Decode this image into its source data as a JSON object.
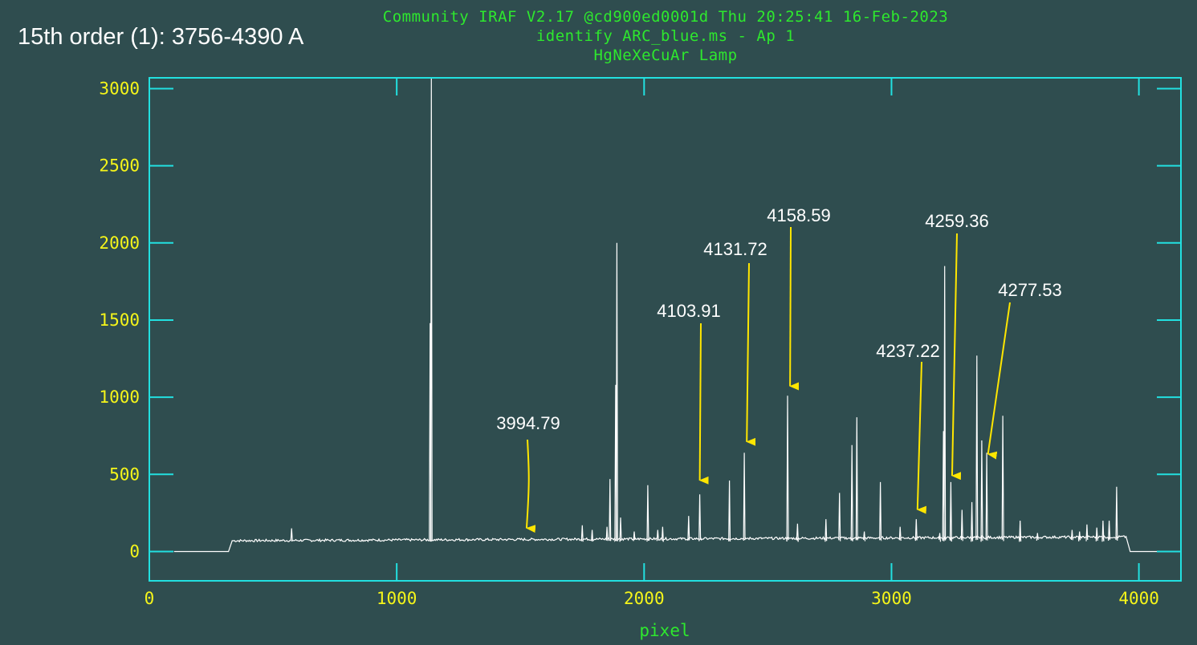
{
  "window": {
    "order_label": "15th order (1): 3756-4390 A",
    "header_line1": "Community IRAF V2.17 @cd900ed0001d Thu 20:25:41 16-Feb-2023",
    "header_line2": "identify ARC_blue.ms - Ap 1",
    "header_line3": "HgNeXeCuAr Lamp"
  },
  "colors": {
    "background": "#2f4d4f",
    "frame": "#22e0e0",
    "tick_labels": "#f5f51a",
    "xlabel": "#2ee82e",
    "header_text": "#2ee82e",
    "spectrum": "#ffffff",
    "annotation_arrow": "#ffe600",
    "annotation_text": "#ffffff"
  },
  "chart_data": {
    "type": "line",
    "title": "identify ARC_blue.ms - Ap 1",
    "xlabel": "pixel",
    "ylabel": "",
    "xlim": [
      0,
      4170
    ],
    "ylim": [
      -190,
      3070
    ],
    "x_ticks": [
      0,
      1000,
      2000,
      3000,
      4000
    ],
    "y_ticks": [
      0,
      500,
      1000,
      1500,
      2000,
      2500,
      3000
    ],
    "grid": false,
    "baseline_start": 330,
    "baseline_end": 3950,
    "baseline_level": 70,
    "peaks": [
      {
        "x": 575,
        "y": 150
      },
      {
        "x": 1135,
        "y": 1480
      },
      {
        "x": 1140,
        "y": 3070
      },
      {
        "x": 1750,
        "y": 170
      },
      {
        "x": 1790,
        "y": 140
      },
      {
        "x": 1850,
        "y": 160
      },
      {
        "x": 1862,
        "y": 470
      },
      {
        "x": 1885,
        "y": 1080
      },
      {
        "x": 1890,
        "y": 2000
      },
      {
        "x": 1905,
        "y": 220
      },
      {
        "x": 1960,
        "y": 130
      },
      {
        "x": 2015,
        "y": 430
      },
      {
        "x": 2055,
        "y": 140
      },
      {
        "x": 2075,
        "y": 160
      },
      {
        "x": 2180,
        "y": 230
      },
      {
        "x": 2225,
        "y": 370
      },
      {
        "x": 2345,
        "y": 460
      },
      {
        "x": 2405,
        "y": 640
      },
      {
        "x": 2580,
        "y": 1010
      },
      {
        "x": 2620,
        "y": 180
      },
      {
        "x": 2735,
        "y": 210
      },
      {
        "x": 2790,
        "y": 380
      },
      {
        "x": 2840,
        "y": 690
      },
      {
        "x": 2860,
        "y": 870
      },
      {
        "x": 2890,
        "y": 130
      },
      {
        "x": 2955,
        "y": 450
      },
      {
        "x": 3035,
        "y": 160
      },
      {
        "x": 3100,
        "y": 210
      },
      {
        "x": 3195,
        "y": 120
      },
      {
        "x": 3210,
        "y": 780
      },
      {
        "x": 3215,
        "y": 1850
      },
      {
        "x": 3240,
        "y": 450
      },
      {
        "x": 3285,
        "y": 270
      },
      {
        "x": 3325,
        "y": 320
      },
      {
        "x": 3345,
        "y": 1270
      },
      {
        "x": 3365,
        "y": 720
      },
      {
        "x": 3385,
        "y": 640
      },
      {
        "x": 3450,
        "y": 880
      },
      {
        "x": 3520,
        "y": 200
      },
      {
        "x": 3590,
        "y": 120
      },
      {
        "x": 3730,
        "y": 140
      },
      {
        "x": 3760,
        "y": 130
      },
      {
        "x": 3790,
        "y": 175
      },
      {
        "x": 3830,
        "y": 155
      },
      {
        "x": 3855,
        "y": 200
      },
      {
        "x": 3880,
        "y": 200
      },
      {
        "x": 3910,
        "y": 420
      }
    ],
    "annotations": [
      {
        "label": "3994.79",
        "x": 1525,
        "y": 120
      },
      {
        "label": "4103.91",
        "x": 2225,
        "y": 430
      },
      {
        "label": "4131.72",
        "x": 2415,
        "y": 680
      },
      {
        "label": "4158.59",
        "x": 2590,
        "y": 1040
      },
      {
        "label": "4237.22",
        "x": 3105,
        "y": 240
      },
      {
        "label": "4259.36",
        "x": 3245,
        "y": 460
      },
      {
        "label": "4277.53",
        "x": 3390,
        "y": 600
      }
    ]
  }
}
